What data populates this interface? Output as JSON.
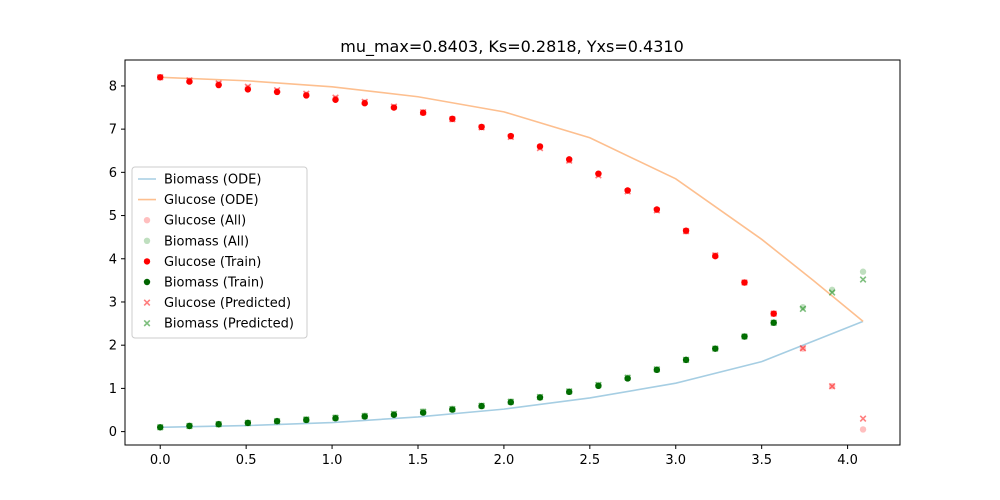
{
  "chart_data": {
    "type": "scatter",
    "title": "mu_max=0.8403, Ks=0.2818, Yxs=0.4310",
    "xlabel": "",
    "ylabel": "",
    "xlim": [
      -0.205,
      4.305
    ],
    "ylim": [
      -0.31,
      8.6
    ],
    "xticks": [
      0.0,
      0.5,
      1.0,
      1.5,
      2.0,
      2.5,
      3.0,
      3.5,
      4.0
    ],
    "yticks": [
      0,
      1,
      2,
      3,
      4,
      5,
      6,
      7,
      8
    ],
    "grid": false,
    "legend_position": "center-left",
    "series": [
      {
        "name": "Biomass (ODE)",
        "kind": "line",
        "color": "#a6cee3",
        "x": [
          0.0,
          0.5,
          1.0,
          1.5,
          2.0,
          2.5,
          3.0,
          3.5,
          4.09
        ],
        "y": [
          0.1,
          0.14,
          0.21,
          0.34,
          0.52,
          0.78,
          1.12,
          1.62,
          2.55
        ]
      },
      {
        "name": "Glucose (ODE)",
        "kind": "line",
        "color": "#fdbf8f",
        "x": [
          0.0,
          0.5,
          1.0,
          1.5,
          2.0,
          2.5,
          3.0,
          3.5,
          3.8,
          4.09
        ],
        "y": [
          8.2,
          8.12,
          7.98,
          7.75,
          7.4,
          6.8,
          5.85,
          4.45,
          3.5,
          2.55
        ]
      },
      {
        "name": "Glucose (All)",
        "kind": "scatter",
        "marker": "circle",
        "color": "#ff0000",
        "alpha": 0.25,
        "x": [
          0.0,
          0.17,
          0.34,
          0.51,
          0.68,
          0.85,
          1.02,
          1.19,
          1.36,
          1.53,
          1.7,
          1.87,
          2.04,
          2.21,
          2.38,
          2.55,
          2.72,
          2.89,
          3.06,
          3.23,
          3.4,
          3.57,
          3.74,
          3.91,
          4.09
        ],
        "y": [
          8.2,
          8.12,
          8.05,
          7.96,
          7.88,
          7.8,
          7.71,
          7.62,
          7.5,
          7.38,
          7.23,
          7.05,
          6.83,
          6.58,
          6.28,
          5.95,
          5.58,
          5.13,
          4.63,
          4.08,
          3.45,
          2.73,
          1.92,
          1.05,
          0.05
        ]
      },
      {
        "name": "Biomass (All)",
        "kind": "scatter",
        "marker": "circle",
        "color": "#008000",
        "alpha": 0.25,
        "x": [
          0.0,
          0.17,
          0.34,
          0.51,
          0.68,
          0.85,
          1.02,
          1.19,
          1.36,
          1.53,
          1.7,
          1.87,
          2.04,
          2.21,
          2.38,
          2.55,
          2.72,
          2.89,
          3.06,
          3.23,
          3.4,
          3.57,
          3.74,
          3.91,
          4.09
        ],
        "y": [
          0.1,
          0.14,
          0.18,
          0.21,
          0.25,
          0.29,
          0.33,
          0.37,
          0.41,
          0.47,
          0.53,
          0.6,
          0.7,
          0.8,
          0.93,
          1.08,
          1.25,
          1.44,
          1.66,
          1.92,
          2.2,
          2.52,
          2.88,
          3.28,
          3.7
        ]
      },
      {
        "name": "Glucose (Train)",
        "kind": "scatter",
        "marker": "circle",
        "color": "#ff0000",
        "alpha": 1.0,
        "x": [
          0.0,
          0.17,
          0.34,
          0.51,
          0.68,
          0.85,
          1.02,
          1.19,
          1.36,
          1.53,
          1.7,
          1.87,
          2.04,
          2.21,
          2.38,
          2.55,
          2.72,
          2.89,
          3.06,
          3.23,
          3.4,
          3.57
        ],
        "y": [
          8.2,
          8.1,
          8.02,
          7.92,
          7.86,
          7.78,
          7.68,
          7.6,
          7.5,
          7.38,
          7.24,
          7.05,
          6.84,
          6.6,
          6.3,
          5.97,
          5.58,
          5.14,
          4.65,
          4.06,
          3.45,
          2.73
        ]
      },
      {
        "name": "Biomass (Train)",
        "kind": "scatter",
        "marker": "circle",
        "color": "#006400",
        "alpha": 1.0,
        "x": [
          0.0,
          0.17,
          0.34,
          0.51,
          0.68,
          0.85,
          1.02,
          1.19,
          1.36,
          1.53,
          1.7,
          1.87,
          2.04,
          2.21,
          2.38,
          2.55,
          2.72,
          2.89,
          3.06,
          3.23,
          3.4,
          3.57
        ],
        "y": [
          0.1,
          0.13,
          0.17,
          0.2,
          0.24,
          0.27,
          0.31,
          0.35,
          0.39,
          0.44,
          0.51,
          0.59,
          0.68,
          0.79,
          0.92,
          1.06,
          1.23,
          1.43,
          1.66,
          1.92,
          2.2,
          2.52
        ]
      },
      {
        "name": "Glucose (Predicted)",
        "kind": "scatter",
        "marker": "x",
        "color": "#ff0000",
        "alpha": 0.5,
        "x": [
          0.0,
          0.17,
          0.34,
          0.51,
          0.68,
          0.85,
          1.02,
          1.19,
          1.36,
          1.53,
          1.7,
          1.87,
          2.04,
          2.21,
          2.38,
          2.55,
          2.72,
          2.89,
          3.06,
          3.23,
          3.4,
          3.57,
          3.74,
          3.91,
          4.09
        ],
        "y": [
          8.2,
          8.13,
          8.06,
          7.98,
          7.9,
          7.82,
          7.73,
          7.63,
          7.52,
          7.39,
          7.23,
          7.04,
          6.82,
          6.56,
          6.27,
          5.93,
          5.56,
          5.12,
          4.64,
          4.08,
          3.45,
          2.73,
          1.93,
          1.05,
          0.3
        ]
      },
      {
        "name": "Biomass (Predicted)",
        "kind": "scatter",
        "marker": "x",
        "color": "#008000",
        "alpha": 0.5,
        "x": [
          0.0,
          0.17,
          0.34,
          0.51,
          0.68,
          0.85,
          1.02,
          1.19,
          1.36,
          1.53,
          1.7,
          1.87,
          2.04,
          2.21,
          2.38,
          2.55,
          2.72,
          2.89,
          3.06,
          3.23,
          3.4,
          3.57,
          3.74,
          3.91,
          4.09
        ],
        "y": [
          0.1,
          0.13,
          0.17,
          0.2,
          0.24,
          0.28,
          0.32,
          0.36,
          0.41,
          0.46,
          0.52,
          0.6,
          0.69,
          0.8,
          0.93,
          1.08,
          1.25,
          1.44,
          1.66,
          1.92,
          2.2,
          2.52,
          2.84,
          3.22,
          3.52
        ]
      }
    ]
  }
}
